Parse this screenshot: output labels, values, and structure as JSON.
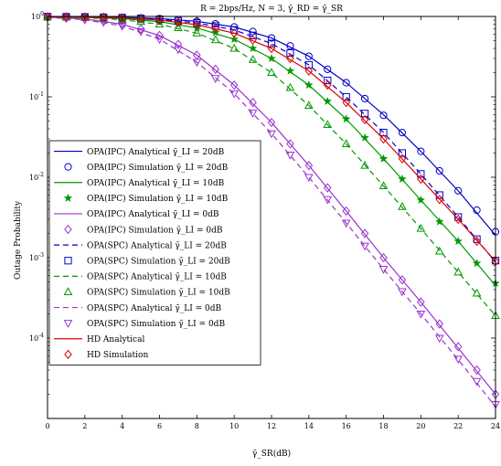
{
  "chart_data": {
    "type": "line",
    "title": "R = 2bps/Hz, N = 3, γ̄_RD = γ̄_SR",
    "xlabel": "γ̄_SR(dB)",
    "ylabel": "Outage Probability",
    "xlim": [
      0,
      24
    ],
    "ylim": [
      1e-05,
      1
    ],
    "yscale": "log",
    "xticks": [
      "0",
      "2",
      "4",
      "6",
      "8",
      "10",
      "12",
      "14",
      "16",
      "18",
      "20",
      "22",
      "24"
    ],
    "yticks": [
      {
        "base": "10",
        "exp": "0",
        "value": 1
      },
      {
        "base": "10",
        "exp": "-1",
        "value": 0.1
      },
      {
        "base": "10",
        "exp": "-2",
        "value": 0.01
      },
      {
        "base": "10",
        "exp": "-3",
        "value": 0.001
      },
      {
        "base": "10",
        "exp": "-4",
        "value": 0.0001
      }
    ],
    "grid": false,
    "legend_position": "left",
    "series": [
      {
        "name": "OPA(IPC) Analytical γ̄_LI = 20dB",
        "color": "#0000cc",
        "style": "solid",
        "marker": "none",
        "x": [
          0,
          2,
          4,
          6,
          8,
          10,
          12,
          14,
          16,
          18,
          20,
          22,
          24
        ],
        "y": [
          0.995,
          0.99,
          0.975,
          0.94,
          0.87,
          0.74,
          0.54,
          0.32,
          0.15,
          0.06,
          0.021,
          0.0068,
          0.0019
        ]
      },
      {
        "name": "OPA(IPC) Simulation γ̄_LI = 20dB",
        "color": "#0000cc",
        "style": "none",
        "marker": "circle",
        "x": [
          0,
          1,
          2,
          3,
          4,
          5,
          6,
          7,
          8,
          9,
          10,
          11,
          12,
          13,
          14,
          15,
          16,
          17,
          18,
          19,
          20,
          21,
          22,
          23,
          24
        ],
        "y": [
          0.995,
          0.993,
          0.99,
          0.984,
          0.975,
          0.96,
          0.94,
          0.91,
          0.87,
          0.81,
          0.74,
          0.65,
          0.54,
          0.43,
          0.32,
          0.22,
          0.15,
          0.095,
          0.059,
          0.036,
          0.021,
          0.012,
          0.0068,
          0.0039,
          0.0021
        ]
      },
      {
        "name": "OPA(IPC) Analytical γ̄_LI = 10dB",
        "color": "#009900",
        "style": "solid",
        "marker": "none",
        "x": [
          0,
          2,
          4,
          6,
          8,
          10,
          12,
          14,
          16,
          18,
          20,
          22,
          24
        ],
        "y": [
          0.99,
          0.975,
          0.94,
          0.86,
          0.72,
          0.52,
          0.3,
          0.14,
          0.053,
          0.017,
          0.0052,
          0.0016,
          0.00045
        ]
      },
      {
        "name": "OPA(IPC) Simulation γ̄_LI = 10dB",
        "color": "#009900",
        "style": "none",
        "marker": "star",
        "x": [
          0,
          1,
          2,
          3,
          4,
          5,
          6,
          7,
          8,
          9,
          10,
          11,
          12,
          13,
          14,
          15,
          16,
          17,
          18,
          19,
          20,
          21,
          22,
          23,
          24
        ],
        "y": [
          0.99,
          0.985,
          0.975,
          0.96,
          0.94,
          0.9,
          0.86,
          0.8,
          0.72,
          0.63,
          0.52,
          0.4,
          0.3,
          0.21,
          0.14,
          0.088,
          0.053,
          0.031,
          0.017,
          0.0095,
          0.0052,
          0.0028,
          0.0016,
          0.00085,
          0.00048
        ]
      },
      {
        "name": "OPA(IPC) Analytical γ̄_LI = 0dB",
        "color": "#9933cc",
        "style": "solid",
        "marker": "none",
        "x": [
          0,
          2,
          4,
          6,
          8,
          10,
          12,
          14,
          16,
          18,
          20,
          22,
          24
        ],
        "y": [
          0.98,
          0.93,
          0.8,
          0.58,
          0.33,
          0.14,
          0.048,
          0.014,
          0.0038,
          0.001,
          0.00028,
          7.5e-05,
          2e-05
        ]
      },
      {
        "name": "OPA(IPC) Simulation γ̄_LI = 0dB",
        "color": "#9933cc",
        "style": "none",
        "marker": "diamond",
        "x": [
          0,
          1,
          2,
          3,
          4,
          5,
          6,
          7,
          8,
          9,
          10,
          11,
          12,
          13,
          14,
          15,
          16,
          17,
          18,
          19,
          20,
          21,
          22,
          23,
          24
        ],
        "y": [
          0.98,
          0.96,
          0.93,
          0.87,
          0.8,
          0.7,
          0.58,
          0.45,
          0.33,
          0.22,
          0.14,
          0.085,
          0.048,
          0.026,
          0.014,
          0.0074,
          0.0038,
          0.002,
          0.001,
          0.00053,
          0.00028,
          0.00015,
          7.8e-05,
          4e-05,
          2e-05
        ]
      },
      {
        "name": "OPA(SPC) Analytical γ̄_LI = 20dB",
        "color": "#0000cc",
        "style": "dashed",
        "marker": "none",
        "x": [
          0,
          2,
          4,
          6,
          8,
          10,
          12,
          14,
          16,
          18,
          20,
          22,
          24
        ],
        "y": [
          0.994,
          0.985,
          0.965,
          0.92,
          0.83,
          0.68,
          0.46,
          0.25,
          0.1,
          0.036,
          0.011,
          0.0032,
          0.00088
        ]
      },
      {
        "name": "OPA(SPC) Simulation γ̄_LI = 20dB",
        "color": "#0000cc",
        "style": "none",
        "marker": "square",
        "x": [
          0,
          1,
          2,
          3,
          4,
          5,
          6,
          7,
          8,
          9,
          10,
          11,
          12,
          13,
          14,
          15,
          16,
          17,
          18,
          19,
          20,
          21,
          22,
          23,
          24
        ],
        "y": [
          0.994,
          0.99,
          0.985,
          0.976,
          0.965,
          0.945,
          0.92,
          0.88,
          0.83,
          0.76,
          0.68,
          0.58,
          0.46,
          0.35,
          0.25,
          0.16,
          0.1,
          0.062,
          0.036,
          0.02,
          0.011,
          0.006,
          0.0032,
          0.0017,
          0.00092
        ]
      },
      {
        "name": "OPA(SPC) Analytical γ̄_LI = 10dB",
        "color": "#009900",
        "style": "dashed",
        "marker": "none",
        "x": [
          0,
          2,
          4,
          6,
          8,
          10,
          12,
          14,
          16,
          18,
          20,
          22,
          24
        ],
        "y": [
          0.985,
          0.965,
          0.91,
          0.8,
          0.62,
          0.4,
          0.2,
          0.078,
          0.026,
          0.0078,
          0.0023,
          0.00066,
          0.00019
        ]
      },
      {
        "name": "OPA(SPC) Simulation γ̄_LI = 10dB",
        "color": "#009900",
        "style": "none",
        "marker": "triangle-up",
        "x": [
          0,
          1,
          2,
          3,
          4,
          5,
          6,
          7,
          8,
          9,
          10,
          11,
          12,
          13,
          14,
          15,
          16,
          17,
          18,
          19,
          20,
          21,
          22,
          23,
          24
        ],
        "y": [
          0.985,
          0.978,
          0.965,
          0.94,
          0.91,
          0.86,
          0.8,
          0.72,
          0.62,
          0.51,
          0.4,
          0.29,
          0.2,
          0.13,
          0.078,
          0.045,
          0.026,
          0.014,
          0.0078,
          0.0043,
          0.0023,
          0.0012,
          0.00066,
          0.00036,
          0.00019
        ]
      },
      {
        "name": "OPA(SPC) Analytical γ̄_LI = 0dB",
        "color": "#9933cc",
        "style": "dashed",
        "marker": "none",
        "x": [
          0,
          2,
          4,
          6,
          8,
          10,
          12,
          14,
          16,
          18,
          20,
          22,
          24
        ],
        "y": [
          0.975,
          0.91,
          0.76,
          0.52,
          0.27,
          0.11,
          0.035,
          0.01,
          0.0027,
          0.00072,
          0.0002,
          5.4e-05,
          1.4e-05
        ]
      },
      {
        "name": "OPA(SPC) Simulation γ̄_LI = 0dB",
        "color": "#9933cc",
        "style": "none",
        "marker": "triangle-down",
        "x": [
          0,
          1,
          2,
          3,
          4,
          5,
          6,
          7,
          8,
          9,
          10,
          11,
          12,
          13,
          14,
          15,
          16,
          17,
          18,
          19,
          20,
          21,
          22,
          23,
          24
        ],
        "y": [
          0.975,
          0.95,
          0.91,
          0.85,
          0.76,
          0.65,
          0.52,
          0.39,
          0.27,
          0.17,
          0.11,
          0.063,
          0.035,
          0.019,
          0.01,
          0.0053,
          0.0027,
          0.0014,
          0.00072,
          0.00038,
          0.0002,
          0.0001,
          5.5e-05,
          2.9e-05,
          1.5e-05
        ]
      },
      {
        "name": "HD Analytical",
        "color": "#dd0000",
        "style": "solid",
        "marker": "none",
        "x": [
          0,
          2,
          4,
          6,
          8,
          10,
          12,
          14,
          16,
          18,
          20,
          22,
          24
        ],
        "y": [
          0.993,
          0.985,
          0.96,
          0.9,
          0.79,
          0.62,
          0.4,
          0.21,
          0.085,
          0.03,
          0.0095,
          0.003,
          0.0009
        ]
      },
      {
        "name": "HD Simulation",
        "color": "#dd0000",
        "style": "none",
        "marker": "diamond",
        "x": [
          0,
          1,
          2,
          3,
          4,
          5,
          6,
          7,
          8,
          9,
          10,
          11,
          12,
          13,
          14,
          15,
          16,
          17,
          18,
          19,
          20,
          21,
          22,
          23,
          24
        ],
        "y": [
          0.993,
          0.99,
          0.985,
          0.975,
          0.96,
          0.935,
          0.9,
          0.85,
          0.79,
          0.71,
          0.62,
          0.51,
          0.4,
          0.3,
          0.21,
          0.14,
          0.085,
          0.052,
          0.03,
          0.017,
          0.0095,
          0.0053,
          0.003,
          0.0016,
          0.0009
        ]
      }
    ]
  }
}
